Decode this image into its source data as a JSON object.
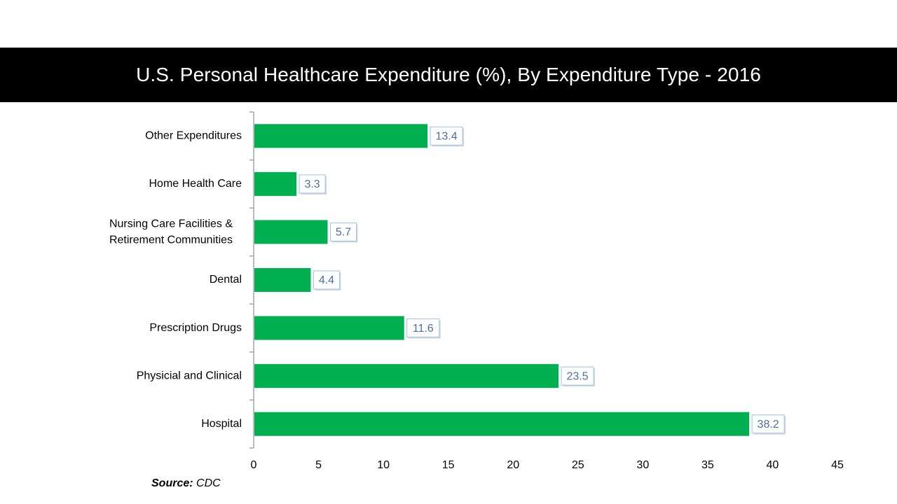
{
  "header": {
    "title": "U.S. Personal Healthcare Expenditure (%), By Expenditure Type - 2016"
  },
  "source": {
    "key": "Source:",
    "value": "CDC"
  },
  "colors": {
    "bar": "#00b050",
    "title_bar": "#000000",
    "data_label": "#4a6fa5"
  },
  "chart_data": {
    "type": "bar",
    "orientation": "horizontal",
    "title": "U.S. Personal Healthcare Expenditure (%), By Expenditure Type - 2016",
    "categories": [
      [
        "Other Expenditures"
      ],
      [
        "Home Health Care"
      ],
      [
        "Nursing Care Facilities &",
        "Retirement Communities"
      ],
      [
        "Dental"
      ],
      [
        "Prescription Drugs"
      ],
      [
        "Physicial and Clinical"
      ],
      [
        "Hospital"
      ]
    ],
    "values": [
      13.4,
      3.3,
      5.7,
      4.4,
      11.6,
      23.5,
      38.2
    ],
    "value_labels": [
      "13.4",
      "3.3",
      "5.7",
      "4.4",
      "11.6",
      "23.5",
      "38.2"
    ],
    "xlim": [
      0,
      45
    ],
    "xticks": [
      "0",
      "5",
      "10",
      "15",
      "20",
      "25",
      "30",
      "35",
      "40",
      "45"
    ],
    "grid": false,
    "legend": "none"
  }
}
